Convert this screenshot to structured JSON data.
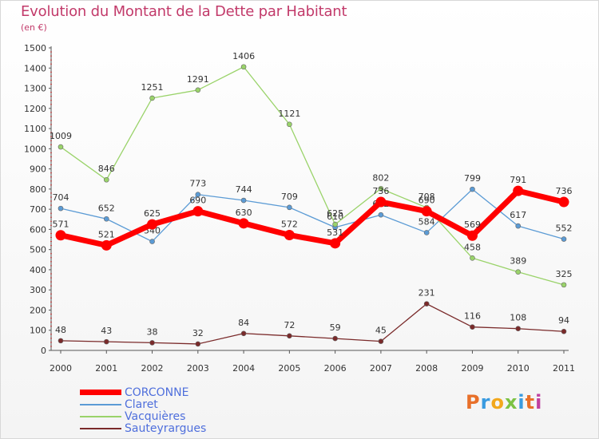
{
  "header": {
    "title": "Evolution du Montant de la Dette par Habitant",
    "subtitle": "(en €)"
  },
  "logo": {
    "text": "Proxiti",
    "colors": [
      "#e8702a",
      "#3a9be0",
      "#f2a81d",
      "#7cc243",
      "#3a9be0",
      "#e8702a",
      "#c040a0"
    ]
  },
  "chart_data": {
    "type": "line",
    "x": [
      "2000",
      "2001",
      "2002",
      "2003",
      "2004",
      "2005",
      "2006",
      "2007",
      "2008",
      "2009",
      "2010",
      "2011"
    ],
    "ylim": [
      0,
      1500
    ],
    "yticks": [
      0,
      100,
      200,
      300,
      400,
      500,
      600,
      700,
      800,
      900,
      1000,
      1100,
      1200,
      1300,
      1400,
      1500
    ],
    "grid": false,
    "legend_position": "bottom-left",
    "series": [
      {
        "name": "CORCONNE",
        "color": "#ff0000",
        "values": [
          571,
          521,
          625,
          690,
          630,
          572,
          531,
          736,
          690,
          569,
          791,
          736
        ]
      },
      {
        "name": "Claret",
        "color": "#5b9bd5",
        "values": [
          704,
          652,
          540,
          773,
          744,
          709,
          610,
          672,
          584,
          799,
          617,
          552
        ]
      },
      {
        "name": "Vacquières",
        "color": "#9ad36a",
        "values": [
          1009,
          846,
          1251,
          1291,
          1406,
          1121,
          625,
          802,
          708,
          458,
          389,
          325
        ]
      },
      {
        "name": "Sauteyrargues",
        "color": "#7a2a2a",
        "values": [
          48,
          43,
          38,
          32,
          84,
          72,
          59,
          45,
          231,
          116,
          108,
          94
        ]
      }
    ]
  }
}
